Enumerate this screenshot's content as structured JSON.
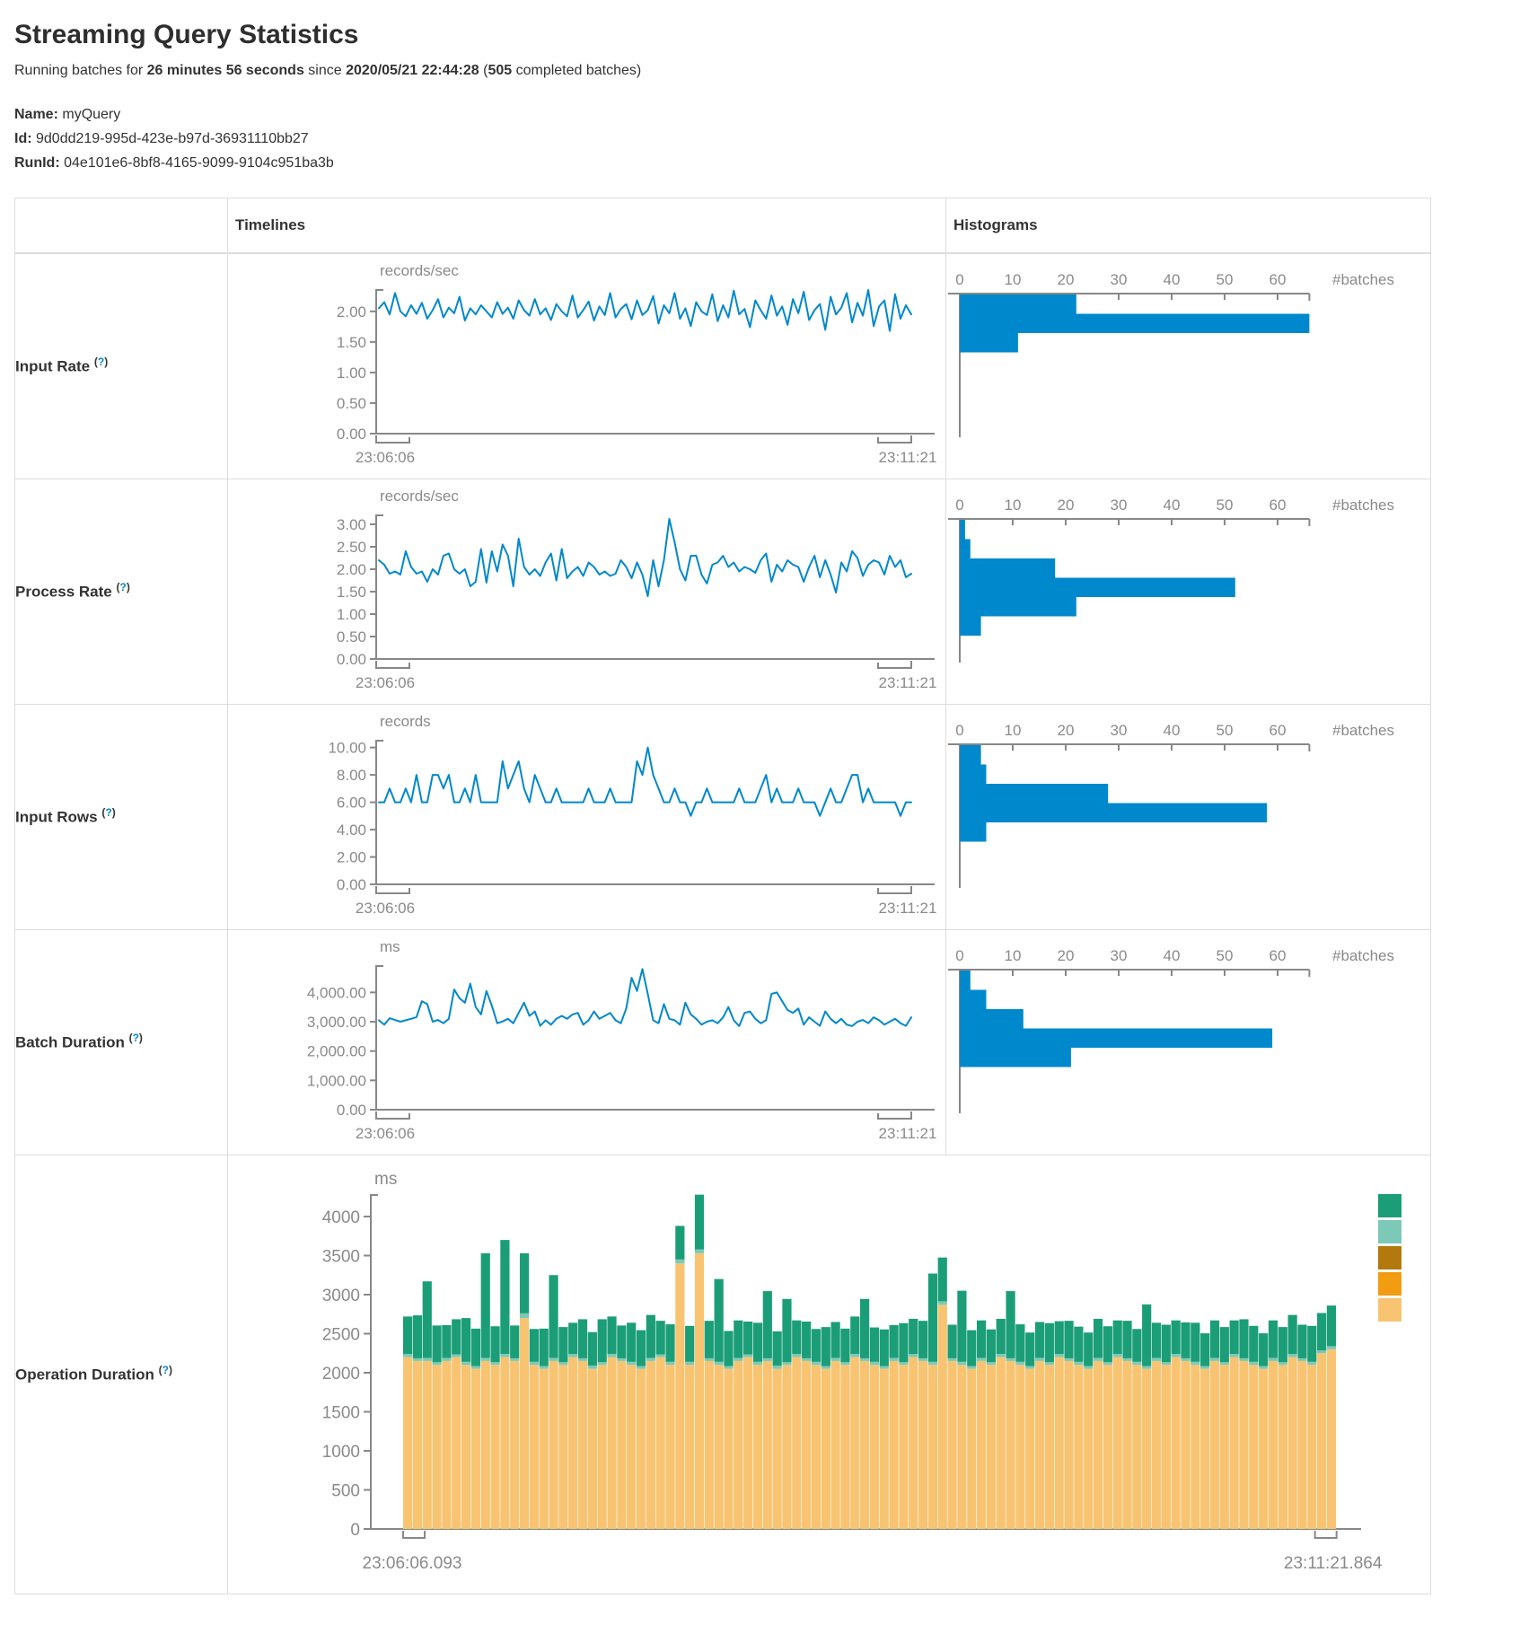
{
  "page": {
    "title": "Streaming Query Statistics",
    "subtitle": {
      "prefix": "Running batches for ",
      "duration": "26 minutes 56 seconds",
      "mid": " since ",
      "start_time": "2020/05/21 22:44:28",
      "open_paren": " (",
      "batch_count": "505",
      "suffix": " completed batches)"
    },
    "query": {
      "name_label": "Name:",
      "name_value": "myQuery",
      "id_label": "Id:",
      "id_value": "9d0dd219-995d-423e-b97d-36931110bb27",
      "runid_label": "RunId:",
      "runid_value": "04e101e6-8bf8-4165-9099-9104c951ba3b"
    }
  },
  "ui": {
    "help_open": "(",
    "help_q": "?",
    "help_close": ")"
  },
  "table": {
    "headers": {
      "timelines": "Timelines",
      "histograms": "Histograms"
    }
  },
  "colors": {
    "line_blue": "#0088cc",
    "hist_bar_blue": "#0088cc",
    "axis_gray": "#888888",
    "tick_text_gray": "#8a8a8a",
    "border_gray": "#dddddd",
    "op_green": "#1b9e77",
    "op_light_teal": "#7dc9b7",
    "op_dark_gold": "#b3790c",
    "op_orange": "#f29d11",
    "op_tan": "#f8c471"
  },
  "chart_data": [
    {
      "label": "Input Rate",
      "timeline": {
        "type": "line",
        "unit": "records/sec",
        "x_start": "23:06:06",
        "x_end": "23:11:21",
        "ymax": 2.35,
        "yticks": [
          {
            "v": 0,
            "t": "0.00"
          },
          {
            "v": 0.5,
            "t": "0.50"
          },
          {
            "v": 1,
            "t": "1.00"
          },
          {
            "v": 1.5,
            "t": "1.50"
          },
          {
            "v": 2,
            "t": "2.00"
          }
        ],
        "values": [
          2.05,
          2.15,
          1.95,
          2.3,
          2.0,
          1.92,
          2.1,
          1.96,
          2.14,
          1.88,
          2.02,
          2.2,
          1.9,
          2.06,
          1.97,
          2.24,
          1.85,
          2.05,
          1.95,
          2.1,
          2.0,
          1.9,
          2.15,
          1.96,
          2.06,
          1.88,
          2.18,
          2.02,
          1.93,
          2.2,
          1.95,
          2.05,
          1.86,
          2.12,
          2.0,
          1.92,
          2.26,
          1.9,
          2.02,
          2.16,
          1.85,
          2.08,
          1.94,
          2.3,
          1.9,
          2.04,
          2.12,
          1.87,
          2.18,
          1.94,
          2.02,
          2.25,
          1.8,
          2.1,
          1.97,
          2.3,
          1.88,
          2.05,
          1.76,
          2.15,
          2.0,
          1.94,
          2.28,
          1.84,
          2.1,
          1.9,
          2.34,
          1.95,
          2.04,
          1.74,
          2.18,
          2.02,
          1.88,
          2.26,
          1.93,
          2.08,
          1.78,
          2.2,
          1.97,
          2.32,
          1.86,
          2.02,
          2.12,
          1.7,
          2.24,
          1.95,
          2.06,
          2.3,
          1.82,
          2.14,
          1.93,
          2.35,
          1.76,
          2.08,
          2.18,
          1.68,
          2.28,
          1.88,
          2.1,
          1.95
        ]
      },
      "histogram": {
        "type": "bar",
        "orientation": "horizontal",
        "xticks": [
          0,
          10,
          20,
          30,
          40,
          50,
          60
        ],
        "xlabel": "#batches",
        "axis_max_units": 66,
        "values": [
          22,
          66,
          11
        ]
      }
    },
    {
      "label": "Process Rate",
      "timeline": {
        "type": "line",
        "unit": "records/sec",
        "x_start": "23:06:06",
        "x_end": "23:11:21",
        "ymax": 3.2,
        "yticks": [
          {
            "v": 0,
            "t": "0.00"
          },
          {
            "v": 0.5,
            "t": "0.50"
          },
          {
            "v": 1,
            "t": "1.00"
          },
          {
            "v": 1.5,
            "t": "1.50"
          },
          {
            "v": 2,
            "t": "2.00"
          },
          {
            "v": 2.5,
            "t": "2.50"
          },
          {
            "v": 3,
            "t": "3.00"
          }
        ],
        "values": [
          2.2,
          2.1,
          1.9,
          1.95,
          1.88,
          2.4,
          2.05,
          1.9,
          1.95,
          1.72,
          2.0,
          1.88,
          2.3,
          2.35,
          2.0,
          1.9,
          2.0,
          1.62,
          1.72,
          2.45,
          1.7,
          2.4,
          1.95,
          2.55,
          2.3,
          1.62,
          2.68,
          2.05,
          1.88,
          2.0,
          1.85,
          2.15,
          2.35,
          1.75,
          2.45,
          1.8,
          1.95,
          2.05,
          1.85,
          2.15,
          2.05,
          1.88,
          1.95,
          1.85,
          1.9,
          2.2,
          2.05,
          1.8,
          2.15,
          1.88,
          1.4,
          2.2,
          1.62,
          2.2,
          3.12,
          2.6,
          2.0,
          1.75,
          2.3,
          2.3,
          1.88,
          1.68,
          2.1,
          2.15,
          2.3,
          2.05,
          2.15,
          1.95,
          2.05,
          2.0,
          1.92,
          2.2,
          2.35,
          1.72,
          2.1,
          1.95,
          2.2,
          2.1,
          2.05,
          1.72,
          2.05,
          2.3,
          1.82,
          2.2,
          1.88,
          1.48,
          2.15,
          1.95,
          2.4,
          2.25,
          1.85,
          2.1,
          2.2,
          2.15,
          1.88,
          2.3,
          2.05,
          2.2,
          1.82,
          1.9
        ]
      },
      "histogram": {
        "type": "bar",
        "orientation": "horizontal",
        "xticks": [
          0,
          10,
          20,
          30,
          40,
          50,
          60
        ],
        "xlabel": "#batches",
        "axis_max_units": 66,
        "values": [
          1,
          2,
          18,
          52,
          22,
          4
        ]
      }
    },
    {
      "label": "Input Rows",
      "timeline": {
        "type": "line",
        "unit": "records",
        "x_start": "23:06:06",
        "x_end": "23:11:21",
        "ymax": 10.5,
        "yticks": [
          {
            "v": 0,
            "t": "0.00"
          },
          {
            "v": 2,
            "t": "2.00"
          },
          {
            "v": 4,
            "t": "4.00"
          },
          {
            "v": 6,
            "t": "6.00"
          },
          {
            "v": 8,
            "t": "8.00"
          },
          {
            "v": 10,
            "t": "10.00"
          }
        ],
        "values": [
          6,
          6,
          7,
          6,
          6,
          7,
          6,
          8,
          6,
          6,
          8,
          8,
          7,
          8,
          6,
          6,
          7,
          6,
          8,
          6,
          6,
          6,
          6,
          9,
          7,
          8,
          9,
          7,
          6,
          8,
          7,
          6,
          6,
          7,
          6,
          6,
          6,
          6,
          6,
          7,
          6,
          6,
          6,
          7,
          6,
          6,
          6,
          6,
          9,
          8,
          10,
          8,
          7,
          6,
          6,
          7,
          6,
          6,
          5,
          6,
          6,
          7,
          6,
          6,
          6,
          6,
          6,
          7,
          6,
          6,
          6,
          7,
          8,
          6,
          7,
          6,
          6,
          6,
          7,
          6,
          6,
          6,
          5,
          6,
          7,
          6,
          6,
          7,
          8,
          8,
          6,
          7,
          6,
          6,
          6,
          6,
          6,
          5,
          6,
          6
        ]
      },
      "histogram": {
        "type": "bar",
        "orientation": "horizontal",
        "xticks": [
          0,
          10,
          20,
          30,
          40,
          50,
          60
        ],
        "xlabel": "#batches",
        "axis_max_units": 66,
        "values": [
          4,
          5,
          28,
          58,
          5
        ]
      }
    },
    {
      "label": "Batch Duration",
      "timeline": {
        "type": "line",
        "unit": "ms",
        "x_start": "23:06:06",
        "x_end": "23:11:21",
        "ymax": 4900,
        "yticks": [
          {
            "v": 0,
            "t": "0.00"
          },
          {
            "v": 1000,
            "t": "1,000.00"
          },
          {
            "v": 2000,
            "t": "2,000.00"
          },
          {
            "v": 3000,
            "t": "3,000.00"
          },
          {
            "v": 4000,
            "t": "4,000.00"
          }
        ],
        "values": [
          3050,
          2900,
          3120,
          3060,
          3000,
          3050,
          3100,
          3160,
          3700,
          3600,
          3000,
          3060,
          2950,
          3100,
          4100,
          3800,
          3650,
          4300,
          3500,
          3250,
          4050,
          3550,
          2950,
          3010,
          3100,
          2950,
          3300,
          3650,
          3200,
          3350,
          2860,
          3050,
          2900,
          3100,
          3200,
          3100,
          3250,
          3300,
          2900,
          3050,
          3350,
          3100,
          3200,
          3300,
          3050,
          2950,
          3450,
          4500,
          4050,
          4800,
          3950,
          3050,
          2950,
          3600,
          3100,
          3050,
          2900,
          3650,
          3250,
          3100,
          2900,
          3000,
          3050,
          2950,
          3150,
          3500,
          3050,
          2850,
          3300,
          3350,
          3100,
          2950,
          3050,
          3950,
          4000,
          3700,
          3400,
          3300,
          3450,
          2900,
          3150,
          3000,
          2860,
          3350,
          3100,
          2950,
          3100,
          2900,
          2850,
          3000,
          3060,
          2950,
          3150,
          3050,
          2900,
          3000,
          3100,
          2950,
          2860,
          3150
        ]
      },
      "histogram": {
        "type": "bar",
        "orientation": "horizontal",
        "xticks": [
          0,
          10,
          20,
          30,
          40,
          50,
          60
        ],
        "xlabel": "#batches",
        "axis_max_units": 66,
        "values": [
          2,
          5,
          12,
          59,
          21
        ]
      }
    },
    {
      "label": "Operation Duration",
      "stacked": {
        "type": "bar",
        "stacked": true,
        "unit": "ms",
        "x_start": "23:06:06.093",
        "x_end": "23:11:21.864",
        "yticks": [
          {
            "v": 0,
            "t": "0"
          },
          {
            "v": 500,
            "t": "500"
          },
          {
            "v": 1000,
            "t": "1000"
          },
          {
            "v": 1500,
            "t": "1500"
          },
          {
            "v": 2000,
            "t": "2000"
          },
          {
            "v": 2500,
            "t": "2500"
          },
          {
            "v": 3000,
            "t": "3000"
          },
          {
            "v": 3500,
            "t": "3500"
          },
          {
            "v": 4000,
            "t": "4000"
          }
        ],
        "segment_colors": [
          "#f8c471",
          "#7dc9b7",
          "#1b9e77"
        ],
        "legend_colors": [
          "#1b9e77",
          "#7dc9b7",
          "#b3790c",
          "#f29d11",
          "#f8c471"
        ],
        "bars": [
          [
            2200,
            40,
            480
          ],
          [
            2150,
            35,
            550
          ],
          [
            2150,
            40,
            980
          ],
          [
            2100,
            35,
            470
          ],
          [
            2150,
            40,
            420
          ],
          [
            2200,
            35,
            450
          ],
          [
            2100,
            40,
            560
          ],
          [
            2050,
            35,
            480
          ],
          [
            2150,
            40,
            1340
          ],
          [
            2100,
            35,
            460
          ],
          [
            2200,
            40,
            1460
          ],
          [
            2150,
            35,
            420
          ],
          [
            2700,
            60,
            770
          ],
          [
            2100,
            40,
            420
          ],
          [
            2050,
            35,
            480
          ],
          [
            2150,
            40,
            1060
          ],
          [
            2100,
            35,
            450
          ],
          [
            2200,
            40,
            400
          ],
          [
            2150,
            35,
            500
          ],
          [
            2050,
            40,
            430
          ],
          [
            2100,
            35,
            550
          ],
          [
            2200,
            40,
            480
          ],
          [
            2150,
            35,
            420
          ],
          [
            2100,
            40,
            500
          ],
          [
            2050,
            35,
            460
          ],
          [
            2150,
            40,
            550
          ],
          [
            2200,
            35,
            430
          ],
          [
            2100,
            40,
            480
          ],
          [
            3400,
            50,
            430
          ],
          [
            2100,
            40,
            460
          ],
          [
            3530,
            50,
            700
          ],
          [
            2150,
            35,
            480
          ],
          [
            2100,
            40,
            1060
          ],
          [
            2050,
            35,
            450
          ],
          [
            2150,
            40,
            480
          ],
          [
            2200,
            35,
            420
          ],
          [
            2100,
            40,
            500
          ],
          [
            2150,
            35,
            860
          ],
          [
            2050,
            40,
            440
          ],
          [
            2100,
            35,
            810
          ],
          [
            2200,
            40,
            430
          ],
          [
            2150,
            35,
            470
          ],
          [
            2100,
            40,
            420
          ],
          [
            2050,
            35,
            500
          ],
          [
            2150,
            40,
            460
          ],
          [
            2100,
            35,
            430
          ],
          [
            2200,
            40,
            480
          ],
          [
            2150,
            35,
            760
          ],
          [
            2100,
            40,
            440
          ],
          [
            2050,
            35,
            470
          ],
          [
            2150,
            40,
            420
          ],
          [
            2100,
            35,
            500
          ],
          [
            2200,
            40,
            450
          ],
          [
            2150,
            35,
            480
          ],
          [
            2100,
            40,
            1130
          ],
          [
            2870,
            45,
            560
          ],
          [
            2150,
            35,
            430
          ],
          [
            2100,
            40,
            910
          ],
          [
            2050,
            35,
            460
          ],
          [
            2150,
            40,
            480
          ],
          [
            2100,
            35,
            420
          ],
          [
            2200,
            40,
            450
          ],
          [
            2150,
            35,
            860
          ],
          [
            2100,
            40,
            480
          ],
          [
            2050,
            35,
            430
          ],
          [
            2150,
            40,
            460
          ],
          [
            2100,
            35,
            500
          ],
          [
            2200,
            40,
            420
          ],
          [
            2150,
            35,
            480
          ],
          [
            2100,
            40,
            450
          ],
          [
            2050,
            35,
            430
          ],
          [
            2150,
            40,
            500
          ],
          [
            2100,
            35,
            460
          ],
          [
            2200,
            40,
            430
          ],
          [
            2150,
            35,
            480
          ],
          [
            2100,
            40,
            420
          ],
          [
            2050,
            35,
            790
          ],
          [
            2150,
            40,
            450
          ],
          [
            2100,
            35,
            480
          ],
          [
            2200,
            40,
            430
          ],
          [
            2150,
            35,
            460
          ],
          [
            2100,
            40,
            500
          ],
          [
            2050,
            35,
            420
          ],
          [
            2150,
            40,
            480
          ],
          [
            2100,
            35,
            450
          ],
          [
            2200,
            40,
            430
          ],
          [
            2150,
            35,
            500
          ],
          [
            2100,
            40,
            460
          ],
          [
            2050,
            35,
            420
          ],
          [
            2150,
            40,
            480
          ],
          [
            2100,
            35,
            450
          ],
          [
            2200,
            40,
            500
          ],
          [
            2150,
            35,
            430
          ],
          [
            2100,
            40,
            460
          ],
          [
            2250,
            35,
            480
          ],
          [
            2300,
            40,
            520
          ]
        ]
      }
    }
  ]
}
